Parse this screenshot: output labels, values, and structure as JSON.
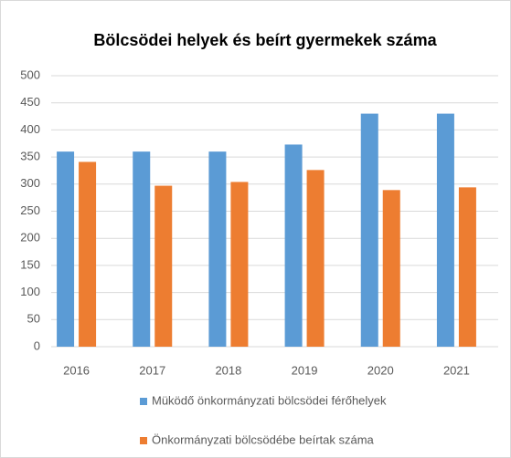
{
  "chart_data": {
    "type": "bar",
    "title": "Bölcsödei helyek és beírt gyermekek száma",
    "categories": [
      "2016",
      "2017",
      "2018",
      "2019",
      "2020",
      "2021"
    ],
    "series": [
      {
        "name": "Müködő önkormányzati bölcsödei férőhelyek",
        "color": "#5b9bd5",
        "values": [
          360,
          360,
          360,
          373,
          430,
          430
        ]
      },
      {
        "name": "Önkormányzati bölcsödébe beírtak száma",
        "color": "#ed7d31",
        "values": [
          341,
          297,
          304,
          326,
          289,
          294
        ]
      }
    ],
    "ylim": [
      0,
      500
    ],
    "yticks": [
      0,
      50,
      100,
      150,
      200,
      250,
      300,
      350,
      400,
      450,
      500
    ],
    "grid": true,
    "legend": "bottom"
  }
}
